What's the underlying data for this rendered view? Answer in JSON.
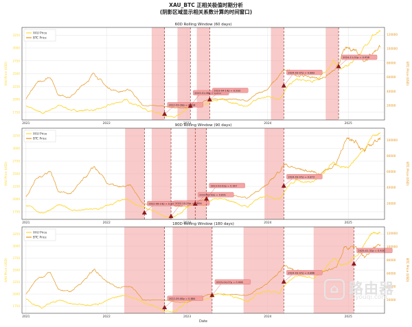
{
  "figure": {
    "title": "XAU_BTC 正相关极值时期分析",
    "subtitle": "(阴影区域显示相关系数计算的时间窗口)",
    "xlabel": "Date",
    "x_ticks": [
      "2021",
      "2022",
      "2023",
      "2024",
      "2025"
    ]
  },
  "colors": {
    "xau": "#FDD835",
    "btc": "#E69419",
    "shade": "#F4A6A6",
    "marker": "#8B1A1A",
    "label_box": "#F4A0A0"
  },
  "legend": {
    "xau": "XAU Price",
    "btc": "BTC Price"
  },
  "watermark": {
    "name": "路由器",
    "url": "luyouqi.com"
  },
  "chart_data": [
    {
      "type": "line",
      "title": "60D Rolling Window (60 days)",
      "ylabel_left": "XAU Price (USD)",
      "ylabel_right": "BTC Price (USD)",
      "y_left_ticks": [
        1750,
        2000,
        2250,
        2500,
        2750,
        3000,
        3250
      ],
      "y_right_ticks": [
        20000,
        40000,
        60000,
        80000,
        100000,
        120000
      ],
      "xlim": [
        2020.95,
        2025.45
      ],
      "ylim_left": [
        1600,
        3400
      ],
      "ylim_right": [
        0,
        130000
      ],
      "windows": [
        {
          "start": 2022.56,
          "end": 2022.72
        },
        {
          "start": 2022.88,
          "end": 2023.04
        },
        {
          "start": 2023.12,
          "end": 2023.28
        },
        {
          "start": 2024.04,
          "end": 2024.2
        },
        {
          "start": 2024.72,
          "end": 2024.88
        }
      ],
      "markers": [
        {
          "x": 2022.72,
          "xau": 1715,
          "label": "2022-09-28ρ = 0.918"
        },
        {
          "x": 2023.04,
          "xau": 1870,
          "label": "2023-01-06ρ = 0.905"
        },
        {
          "x": 2023.28,
          "xau": 1995,
          "label": "2023-04-14ρ = 0.933"
        },
        {
          "x": 2024.2,
          "xau": 2265,
          "label": "2024-03-07ρ = 0.883"
        },
        {
          "x": 2024.88,
          "xau": 2640,
          "label": "2024-11-01ρ = 0.938"
        }
      ]
    },
    {
      "type": "line",
      "title": "90D Rolling Window (90 days)",
      "ylabel_left": "XAU Price (USD)",
      "ylabel_right": "BTC Price (USD)",
      "y_left_ticks": [
        1750,
        2000,
        2250,
        2500,
        2750,
        3000,
        3250
      ],
      "y_right_ticks": [
        20000,
        40000,
        60000,
        80000,
        100000
      ],
      "xlim": [
        2020.95,
        2025.45
      ],
      "ylim_left": [
        1600,
        3400
      ],
      "ylim_right": [
        0,
        115000
      ],
      "windows": [
        {
          "start": 2022.23,
          "end": 2022.47
        },
        {
          "start": 2022.56,
          "end": 2022.8
        },
        {
          "start": 2023.0,
          "end": 2023.24
        },
        {
          "start": 2023.96,
          "end": 2024.2
        }
      ],
      "markers": [
        {
          "x": 2022.47,
          "xau": 1730,
          "label": "2022-06-14ρ = 0.903"
        },
        {
          "x": 2022.8,
          "xau": 1660,
          "label": "2022-10-20ρ = 0.894"
        },
        {
          "x": 2023.1,
          "xau": 1905,
          "label": "2023-02-02ρ = 0.891"
        },
        {
          "x": 2023.24,
          "xau": 2005,
          "label": "2023-03-03ρ = 0.907"
        },
        {
          "x": 2024.2,
          "xau": 2260,
          "label": "2024-03-07ρ = 0.873"
        }
      ]
    },
    {
      "type": "line",
      "title": "180D Rolling Window (180 days)",
      "ylabel_left": "XAU Price (USD)",
      "ylabel_right": "BTC Price (USD)",
      "y_left_ticks": [
        1750,
        2000,
        2250,
        2500,
        2750,
        3000,
        3250
      ],
      "y_right_ticks": [
        20000,
        40000,
        60000,
        80000,
        100000,
        120000
      ],
      "xlim": [
        2020.95,
        2025.45
      ],
      "ylim_left": [
        1600,
        3400
      ],
      "ylim_right": [
        0,
        130000
      ],
      "windows": [
        {
          "start": 2022.22,
          "end": 2022.72
        },
        {
          "start": 2022.82,
          "end": 2023.31
        },
        {
          "start": 2023.7,
          "end": 2024.2
        },
        {
          "start": 2024.57,
          "end": 2025.07
        }
      ],
      "markers": [
        {
          "x": 2022.72,
          "xau": 1720,
          "label": "2022-09-08ρ = 0.884"
        },
        {
          "x": 2023.31,
          "xau": 1975,
          "label": "2023-04-07ρ = 0.908"
        },
        {
          "x": 2024.2,
          "xau": 2255,
          "label": "2024-03-07ρ = 0.886"
        },
        {
          "x": 2025.07,
          "xau": 2630,
          "label": "2025-01-31ρ = 0.920"
        }
      ]
    }
  ]
}
